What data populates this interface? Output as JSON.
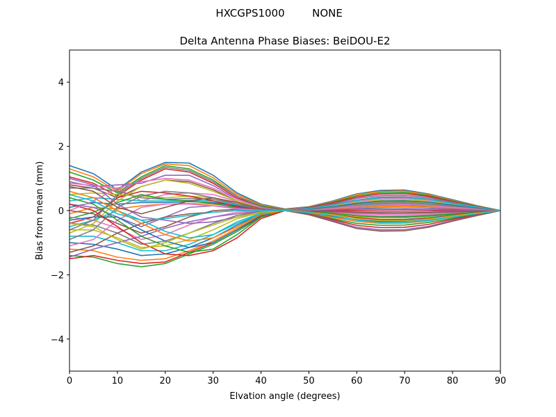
{
  "figure": {
    "suptitle_left": "HXCGPS1000",
    "suptitle_right": "NONE"
  },
  "chart_data": {
    "type": "line",
    "title": "Delta Antenna Phase Biases: BeiDOU-E2",
    "xlabel": "Elvation angle (degrees)",
    "ylabel": "Bias from mean (mm)",
    "xlim": [
      0,
      90
    ],
    "ylim": [
      -5,
      5
    ],
    "xticks": [
      0,
      10,
      20,
      30,
      40,
      50,
      60,
      70,
      80,
      90
    ],
    "xtick_labels": [
      "0",
      "10",
      "20",
      "30",
      "40",
      "50",
      "60",
      "70",
      "80",
      "90"
    ],
    "yticks": [
      -4,
      -2,
      0,
      2,
      4
    ],
    "ytick_labels": [
      "−4",
      "−2",
      "0",
      "2",
      "4"
    ],
    "grid": false,
    "legend": "none",
    "colors": [
      "#1f77b4",
      "#ff7f0e",
      "#2ca02c",
      "#d62728",
      "#9467bd",
      "#8c564b",
      "#e377c2",
      "#7f7f7f",
      "#bcbd22",
      "#17becf"
    ],
    "x": [
      0,
      5,
      10,
      15,
      20,
      25,
      30,
      35,
      40,
      45,
      50,
      55,
      60,
      65,
      70,
      75,
      80,
      85,
      90
    ],
    "series": [
      {
        "values": [
          1.4,
          1.15,
          0.65,
          1.2,
          1.5,
          1.48,
          1.1,
          0.55,
          0.2,
          0.05,
          0.12,
          0.3,
          0.52,
          0.63,
          0.64,
          0.52,
          0.34,
          0.16,
          0.0
        ]
      },
      {
        "values": [
          1.3,
          1.05,
          0.6,
          1.15,
          1.45,
          1.4,
          1.02,
          0.5,
          0.18,
          0.04,
          0.11,
          0.28,
          0.5,
          0.6,
          0.61,
          0.5,
          0.32,
          0.15,
          0.0
        ]
      },
      {
        "values": [
          1.2,
          0.95,
          0.55,
          1.05,
          1.4,
          1.3,
          0.95,
          0.45,
          0.15,
          0.03,
          0.1,
          0.26,
          0.46,
          0.56,
          0.57,
          0.47,
          0.3,
          0.14,
          0.0
        ]
      },
      {
        "values": [
          1.05,
          0.85,
          0.45,
          0.95,
          1.3,
          1.2,
          0.85,
          0.4,
          0.12,
          0.02,
          0.09,
          0.24,
          0.42,
          0.52,
          0.53,
          0.44,
          0.28,
          0.13,
          0.0
        ]
      },
      {
        "values": [
          0.9,
          0.75,
          0.8,
          0.85,
          1.1,
          1.1,
          0.78,
          0.36,
          0.1,
          0.02,
          0.08,
          0.21,
          0.38,
          0.47,
          0.48,
          0.4,
          0.26,
          0.12,
          0.0
        ]
      },
      {
        "values": [
          0.8,
          0.7,
          0.4,
          0.75,
          0.95,
          0.9,
          0.65,
          0.3,
          0.08,
          0.01,
          0.07,
          0.18,
          0.33,
          0.42,
          0.43,
          0.36,
          0.23,
          0.11,
          0.0
        ]
      },
      {
        "values": [
          0.85,
          0.78,
          0.7,
          0.3,
          0.5,
          0.55,
          0.5,
          0.28,
          0.07,
          0.01,
          0.06,
          0.16,
          0.29,
          0.37,
          0.38,
          0.32,
          0.21,
          0.1,
          0.0
        ]
      },
      {
        "values": [
          0.7,
          0.7,
          0.6,
          0.4,
          0.35,
          0.38,
          0.35,
          0.2,
          0.05,
          0.0,
          0.05,
          0.13,
          0.25,
          0.32,
          0.33,
          0.28,
          0.18,
          0.09,
          0.0
        ]
      },
      {
        "values": [
          0.5,
          0.55,
          0.5,
          0.45,
          0.4,
          0.45,
          0.4,
          0.25,
          0.06,
          0.0,
          0.04,
          0.11,
          0.21,
          0.27,
          0.28,
          0.24,
          0.16,
          0.08,
          0.0
        ]
      },
      {
        "values": [
          0.3,
          0.4,
          0.35,
          0.3,
          0.3,
          0.32,
          0.3,
          0.18,
          0.05,
          0.0,
          0.03,
          0.09,
          0.17,
          0.22,
          0.23,
          0.2,
          0.13,
          0.06,
          0.0
        ]
      },
      {
        "values": [
          0.1,
          0.25,
          0.2,
          0.25,
          0.25,
          0.28,
          0.25,
          0.15,
          0.04,
          0.0,
          0.02,
          0.06,
          0.13,
          0.17,
          0.18,
          0.15,
          0.1,
          0.05,
          0.0
        ]
      },
      {
        "values": [
          -0.1,
          0.1,
          0.05,
          0.15,
          0.2,
          0.22,
          0.2,
          0.12,
          0.03,
          0.0,
          0.01,
          0.04,
          0.09,
          0.12,
          0.13,
          0.11,
          0.07,
          0.03,
          0.0
        ]
      },
      {
        "values": [
          -0.25,
          -0.05,
          0.25,
          0.5,
          0.35,
          0.3,
          0.22,
          0.1,
          0.02,
          0.0,
          0.0,
          0.02,
          0.05,
          0.07,
          0.08,
          0.07,
          0.04,
          0.02,
          0.0
        ]
      },
      {
        "values": [
          -0.4,
          -0.2,
          0.4,
          0.6,
          0.55,
          0.45,
          0.3,
          0.12,
          0.02,
          0.0,
          -0.01,
          0.0,
          0.01,
          0.02,
          0.03,
          0.02,
          0.01,
          0.01,
          0.0
        ]
      },
      {
        "values": [
          0.2,
          0.1,
          -0.2,
          -0.5,
          -0.2,
          0.1,
          0.15,
          0.08,
          0.01,
          0.0,
          -0.02,
          -0.02,
          -0.03,
          -0.03,
          -0.02,
          -0.02,
          -0.01,
          0.0,
          0.0
        ]
      },
      {
        "values": [
          0.0,
          -0.1,
          -0.4,
          -0.7,
          -0.5,
          -0.2,
          0.0,
          0.04,
          0.0,
          0.0,
          -0.03,
          -0.04,
          -0.07,
          -0.08,
          -0.07,
          -0.06,
          -0.04,
          -0.02,
          0.0
        ]
      },
      {
        "values": [
          -0.2,
          -0.3,
          -0.55,
          -0.9,
          -0.75,
          -0.45,
          -0.2,
          -0.05,
          -0.02,
          0.0,
          -0.04,
          -0.06,
          -0.11,
          -0.13,
          -0.12,
          -0.1,
          -0.06,
          -0.03,
          0.0
        ]
      },
      {
        "values": [
          -0.4,
          -0.45,
          -0.7,
          -1.05,
          -0.95,
          -0.7,
          -0.4,
          -0.15,
          -0.04,
          0.0,
          -0.05,
          -0.09,
          -0.15,
          -0.18,
          -0.17,
          -0.14,
          -0.09,
          -0.04,
          0.0
        ]
      },
      {
        "values": [
          -0.6,
          -0.6,
          -0.85,
          -1.15,
          -1.1,
          -0.9,
          -0.6,
          -0.25,
          -0.06,
          0.0,
          -0.06,
          -0.12,
          -0.19,
          -0.23,
          -0.22,
          -0.18,
          -0.11,
          -0.05,
          0.0
        ]
      },
      {
        "values": [
          -0.8,
          -0.8,
          -1.0,
          -1.25,
          -1.25,
          -1.05,
          -0.75,
          -0.35,
          -0.08,
          0.0,
          -0.07,
          -0.15,
          -0.24,
          -0.28,
          -0.27,
          -0.22,
          -0.14,
          -0.07,
          0.0
        ]
      },
      {
        "values": [
          -1.0,
          -1.05,
          -1.2,
          -1.4,
          -1.35,
          -1.15,
          -0.85,
          -0.45,
          -0.1,
          0.0,
          -0.08,
          -0.18,
          -0.29,
          -0.34,
          -0.33,
          -0.27,
          -0.17,
          -0.08,
          0.0
        ]
      },
      {
        "values": [
          -1.2,
          -1.25,
          -1.45,
          -1.55,
          -1.5,
          -1.25,
          -0.95,
          -0.55,
          -0.15,
          0.0,
          -0.09,
          -0.21,
          -0.34,
          -0.4,
          -0.39,
          -0.32,
          -0.2,
          -0.1,
          0.0
        ]
      },
      {
        "values": [
          -1.4,
          -1.45,
          -1.65,
          -1.75,
          -1.65,
          -1.35,
          -1.05,
          -0.65,
          -0.2,
          0.0,
          -0.1,
          -0.25,
          -0.4,
          -0.46,
          -0.45,
          -0.37,
          -0.24,
          -0.11,
          0.0
        ]
      },
      {
        "values": [
          -1.5,
          -1.4,
          -1.55,
          -1.65,
          -1.6,
          -1.3,
          -1.0,
          -0.6,
          -0.18,
          0.0,
          -0.11,
          -0.28,
          -0.46,
          -0.53,
          -0.52,
          -0.43,
          -0.27,
          -0.13,
          0.0
        ]
      },
      {
        "values": [
          -1.45,
          -1.2,
          -1.0,
          -0.8,
          -0.55,
          -0.35,
          -0.2,
          -0.1,
          -0.03,
          0.0,
          -0.12,
          -0.31,
          -0.52,
          -0.6,
          -0.59,
          -0.49,
          -0.31,
          -0.15,
          0.0
        ]
      },
      {
        "values": [
          -1.3,
          -1.1,
          -0.7,
          -0.4,
          -0.2,
          -0.1,
          -0.05,
          0.0,
          0.0,
          0.0,
          -0.13,
          -0.34,
          -0.56,
          -0.64,
          -0.63,
          -0.52,
          -0.33,
          -0.16,
          0.0
        ]
      },
      {
        "values": [
          -1.1,
          -0.9,
          -0.3,
          0.1,
          0.2,
          0.2,
          0.15,
          0.05,
          0.01,
          0.0,
          -0.02,
          -0.05,
          -0.09,
          -0.11,
          -0.1,
          -0.08,
          -0.05,
          -0.02,
          0.0
        ]
      },
      {
        "values": [
          -0.9,
          -0.6,
          0.1,
          0.45,
          0.6,
          0.55,
          0.4,
          0.2,
          0.05,
          0.0,
          0.03,
          0.08,
          0.15,
          0.19,
          0.2,
          0.17,
          0.11,
          0.05,
          0.0
        ]
      },
      {
        "values": [
          -0.7,
          -0.4,
          0.3,
          0.75,
          0.95,
          0.85,
          0.6,
          0.3,
          0.08,
          0.0,
          0.05,
          0.14,
          0.26,
          0.33,
          0.34,
          0.29,
          0.19,
          0.09,
          0.0
        ]
      },
      {
        "values": [
          -0.5,
          -0.3,
          0.0,
          -0.3,
          -0.65,
          -0.85,
          -0.75,
          -0.4,
          -0.1,
          0.0,
          0.06,
          0.17,
          0.32,
          0.4,
          0.41,
          0.35,
          0.22,
          0.11,
          0.0
        ]
      },
      {
        "values": [
          -0.3,
          -0.2,
          -0.2,
          -0.6,
          -0.95,
          -1.15,
          -1.0,
          -0.6,
          -0.15,
          0.0,
          0.04,
          0.12,
          0.23,
          0.29,
          0.3,
          0.26,
          0.17,
          0.08,
          0.0
        ]
      },
      {
        "values": [
          0.6,
          0.4,
          0.0,
          -0.4,
          -0.75,
          -0.95,
          -0.85,
          -0.5,
          -0.12,
          0.0,
          0.02,
          0.05,
          0.1,
          0.13,
          0.14,
          0.12,
          0.08,
          0.04,
          0.0
        ]
      },
      {
        "values": [
          0.4,
          0.2,
          -0.3,
          -0.8,
          -1.1,
          -1.3,
          -1.2,
          -0.75,
          -0.2,
          0.0,
          -0.03,
          -0.08,
          -0.16,
          -0.2,
          -0.2,
          -0.17,
          -0.11,
          -0.05,
          0.0
        ]
      },
      {
        "values": [
          0.2,
          0.0,
          -0.5,
          -1.0,
          -1.35,
          -1.4,
          -1.25,
          -0.85,
          -0.25,
          0.0,
          -0.04,
          -0.12,
          -0.22,
          -0.28,
          -0.28,
          -0.24,
          -0.15,
          -0.07,
          0.0
        ]
      },
      {
        "values": [
          1.0,
          0.8,
          0.2,
          -0.2,
          -0.3,
          -0.4,
          -0.35,
          -0.2,
          -0.05,
          0.0,
          0.01,
          0.03,
          0.06,
          0.08,
          0.08,
          0.07,
          0.05,
          0.02,
          0.0
        ]
      },
      {
        "values": [
          0.75,
          0.6,
          0.1,
          -0.1,
          0.1,
          0.3,
          0.4,
          0.25,
          0.06,
          0.0,
          -0.01,
          -0.03,
          -0.06,
          -0.07,
          -0.07,
          -0.06,
          -0.04,
          -0.02,
          0.0
        ]
      },
      {
        "values": [
          0.0,
          0.3,
          0.7,
          0.9,
          1.0,
          0.95,
          0.7,
          0.35,
          0.09,
          0.0,
          0.02,
          0.07,
          0.14,
          0.18,
          0.19,
          0.16,
          0.1,
          0.05,
          0.0
        ]
      },
      {
        "values": [
          -0.6,
          -0.3,
          0.5,
          1.0,
          1.35,
          1.25,
          0.9,
          0.45,
          0.12,
          0.0,
          0.03,
          0.1,
          0.19,
          0.24,
          0.25,
          0.21,
          0.14,
          0.07,
          0.0
        ]
      },
      {
        "values": [
          -0.4,
          -0.5,
          -0.9,
          -1.2,
          -1.0,
          -0.7,
          -0.45,
          -0.2,
          -0.05,
          0.0,
          -0.05,
          -0.13,
          -0.25,
          -0.31,
          -0.31,
          -0.26,
          -0.17,
          -0.08,
          0.0
        ]
      },
      {
        "values": [
          0.5,
          0.3,
          -0.1,
          -0.3,
          -0.25,
          -0.15,
          -0.05,
          0.0,
          0.0,
          0.0,
          -0.06,
          -0.16,
          -0.3,
          -0.37,
          -0.37,
          -0.31,
          -0.2,
          -0.1,
          0.0
        ]
      }
    ]
  }
}
